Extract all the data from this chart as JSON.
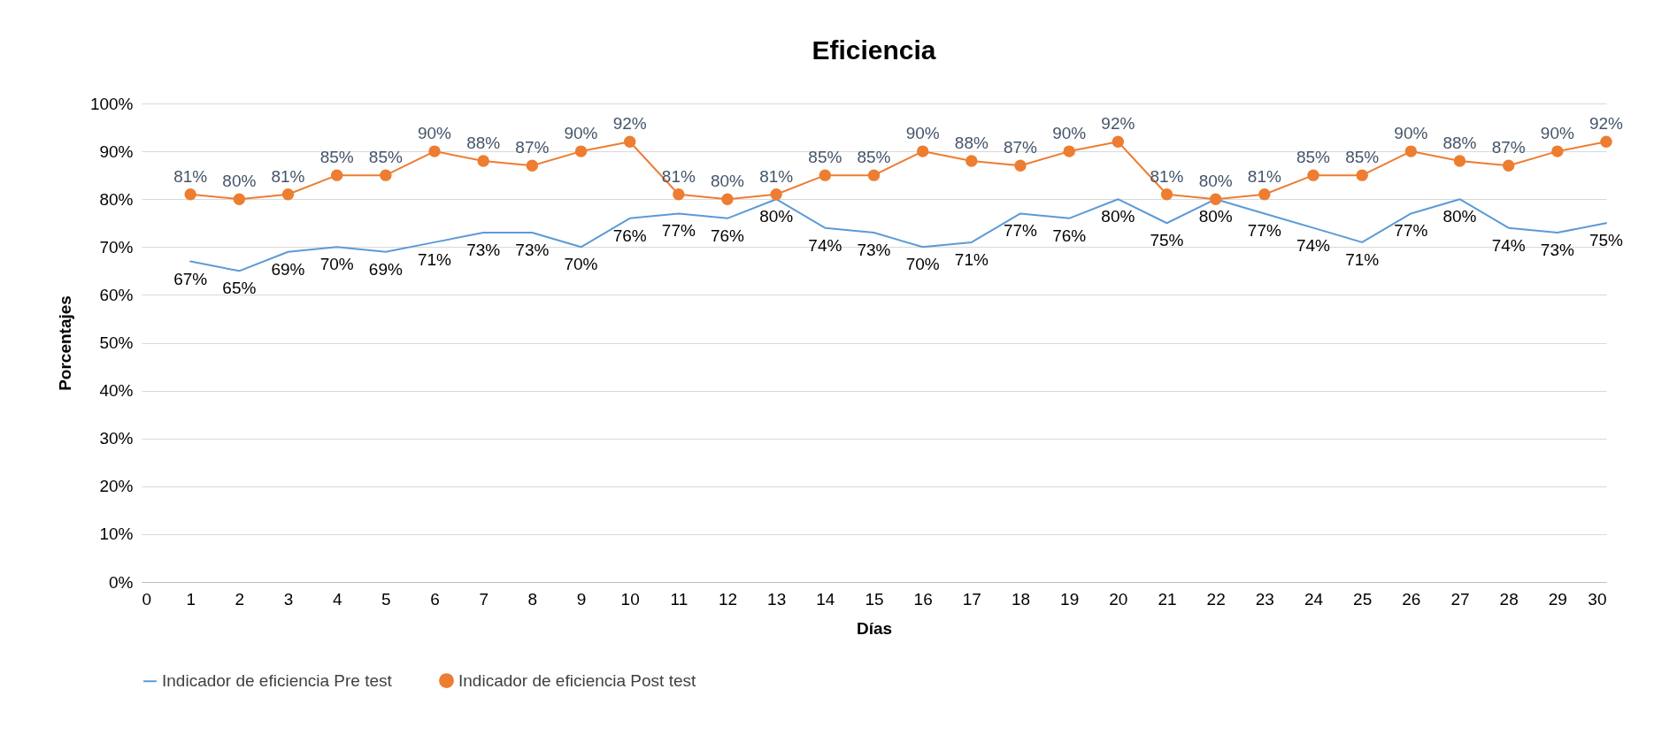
{
  "chart_data": {
    "type": "line",
    "title": "Eficiencia",
    "xlabel": "Días",
    "ylabel": "Porcentajes",
    "x": [
      1,
      2,
      3,
      4,
      5,
      6,
      7,
      8,
      9,
      10,
      11,
      12,
      13,
      14,
      15,
      16,
      17,
      18,
      19,
      20,
      21,
      22,
      23,
      24,
      25,
      26,
      27,
      28,
      29,
      30
    ],
    "xlim": [
      0,
      30
    ],
    "xticks": [
      0,
      1,
      2,
      3,
      4,
      5,
      6,
      7,
      8,
      9,
      10,
      11,
      12,
      13,
      14,
      15,
      16,
      17,
      18,
      19,
      20,
      21,
      22,
      23,
      24,
      25,
      26,
      27,
      28,
      29,
      30
    ],
    "ylim": [
      0,
      100
    ],
    "yticks": [
      {
        "value": 0,
        "label": "0%"
      },
      {
        "value": 10,
        "label": "10%"
      },
      {
        "value": 20,
        "label": "20%"
      },
      {
        "value": 30,
        "label": "30%"
      },
      {
        "value": 40,
        "label": "40%"
      },
      {
        "value": 50,
        "label": "50%"
      },
      {
        "value": 60,
        "label": "60%"
      },
      {
        "value": 70,
        "label": "70%"
      },
      {
        "value": 80,
        "label": "80%"
      },
      {
        "value": 90,
        "label": "90%"
      },
      {
        "value": 100,
        "label": "100%"
      }
    ],
    "grid": "y",
    "legend": "bottom",
    "series": [
      {
        "name": "Indicador de eficiencia Pre test",
        "color": "#5b9bd5",
        "marker": "none",
        "values": [
          67,
          65,
          69,
          70,
          69,
          71,
          73,
          73,
          70,
          76,
          77,
          76,
          80,
          74,
          73,
          70,
          71,
          77,
          76,
          80,
          75,
          80,
          77,
          74,
          71,
          77,
          80,
          74,
          73,
          75
        ],
        "value_labels": [
          "67%",
          "65%",
          "69%",
          "70%",
          "69%",
          "71%",
          "73%",
          "73%",
          "70%",
          "76%",
          "77%",
          "76%",
          "80%",
          "74%",
          "73%",
          "70%",
          "71%",
          "77%",
          "76%",
          "80%",
          "75%",
          "80%",
          "77%",
          "74%",
          "71%",
          "77%",
          "80%",
          "74%",
          "73%",
          "75%"
        ]
      },
      {
        "name": "Indicador de eficiencia Post test",
        "color": "#ed7d31",
        "marker": "circle",
        "values": [
          81,
          80,
          81,
          85,
          85,
          90,
          88,
          87,
          90,
          92,
          81,
          80,
          81,
          85,
          85,
          90,
          88,
          87,
          90,
          92,
          81,
          80,
          81,
          85,
          85,
          90,
          88,
          87,
          90,
          92
        ],
        "value_labels": [
          "81%",
          "80%",
          "81%",
          "85%",
          "85%",
          "90%",
          "88%",
          "87%",
          "90%",
          "92%",
          "81%",
          "80%",
          "81%",
          "85%",
          "85%",
          "90%",
          "88%",
          "87%",
          "90%",
          "92%",
          "81%",
          "80%",
          "81%",
          "85%",
          "85%",
          "90%",
          "88%",
          "87%",
          "90%",
          "92%"
        ]
      }
    ]
  }
}
